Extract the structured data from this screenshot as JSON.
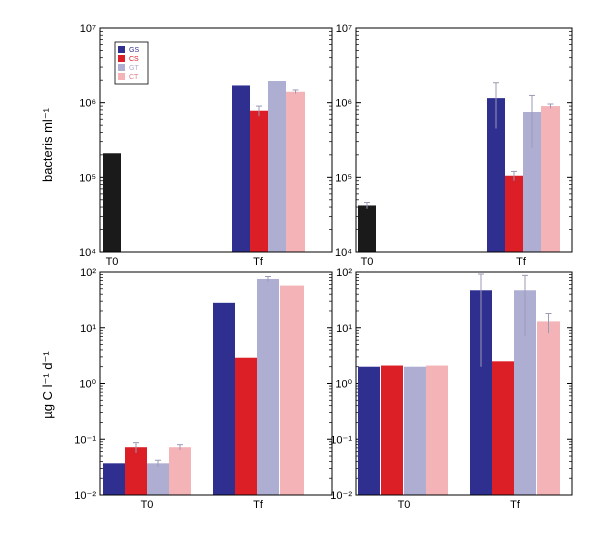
{
  "figure": {
    "ylabel_top": "bacteris ml⁻¹",
    "ylabel_bottom": "µg C l⁻¹ d⁻¹"
  },
  "legend": [
    {
      "name": "GS",
      "color": "#2e2f8e",
      "text_color": "#2e2f8e"
    },
    {
      "name": "CS",
      "color": "#dc1f26",
      "text_color": "#dc1f26"
    },
    {
      "name": "GT",
      "color": "#aeaed3",
      "text_color": "#aeaed3"
    },
    {
      "name": "CT",
      "color": "#f4b3b6",
      "text_color": "#e0808a"
    }
  ],
  "colors": {
    "t0_bar": "#1a1a1a",
    "error_bar": "#9a9ab5"
  },
  "chart_data": [
    {
      "type": "bar",
      "panel": "top-left",
      "categories": [
        "T0",
        "Tf"
      ],
      "series": [
        {
          "name": "T0",
          "values": [
            210000,
            null
          ],
          "errors": [
            0,
            null
          ]
        },
        {
          "name": "GS",
          "values": [
            null,
            1700000
          ],
          "errors": [
            null,
            0
          ]
        },
        {
          "name": "CS",
          "values": [
            null,
            780000
          ],
          "errors": [
            null,
            120000
          ]
        },
        {
          "name": "GT",
          "values": [
            null,
            1950000
          ],
          "errors": [
            null,
            0
          ]
        },
        {
          "name": "CT",
          "values": [
            null,
            1400000
          ],
          "errors": [
            null,
            80000
          ]
        }
      ],
      "ylabel": "bacteris ml⁻¹",
      "ylim": [
        10000,
        10000000
      ],
      "yscale": "log",
      "legend": "top-left"
    },
    {
      "type": "bar",
      "panel": "top-right",
      "categories": [
        "T0",
        "Tf"
      ],
      "series": [
        {
          "name": "T0",
          "values": [
            42000,
            null
          ],
          "errors": [
            4000,
            null
          ]
        },
        {
          "name": "GS",
          "values": [
            null,
            1150000
          ],
          "errors": [
            null,
            700000
          ]
        },
        {
          "name": "CS",
          "values": [
            null,
            105000
          ],
          "errors": [
            null,
            15000
          ]
        },
        {
          "name": "GT",
          "values": [
            null,
            750000
          ],
          "errors": [
            null,
            500000
          ]
        },
        {
          "name": "CT",
          "values": [
            null,
            900000
          ],
          "errors": [
            null,
            60000
          ]
        }
      ],
      "ylim": [
        10000,
        10000000
      ],
      "yscale": "log"
    },
    {
      "type": "bar",
      "panel": "bottom-left",
      "categories": [
        "T0",
        "Tf"
      ],
      "series": [
        {
          "name": "GS",
          "values": [
            0.037,
            28
          ],
          "errors": [
            0,
            0
          ]
        },
        {
          "name": "CS",
          "values": [
            0.072,
            2.9
          ],
          "errors": [
            0.015,
            0
          ]
        },
        {
          "name": "GT",
          "values": [
            0.037,
            75
          ],
          "errors": [
            0.005,
            8
          ]
        },
        {
          "name": "CT",
          "values": [
            0.072,
            57
          ],
          "errors": [
            0.008,
            0
          ]
        }
      ],
      "ylabel": "µg C l⁻¹ d⁻¹",
      "ylim": [
        0.01,
        100
      ],
      "yscale": "log"
    },
    {
      "type": "bar",
      "panel": "bottom-right",
      "categories": [
        "T0",
        "Tf"
      ],
      "series": [
        {
          "name": "GS",
          "values": [
            2.0,
            47
          ],
          "errors": [
            0,
            45
          ]
        },
        {
          "name": "CS",
          "values": [
            2.1,
            2.5
          ],
          "errors": [
            0,
            0
          ]
        },
        {
          "name": "GT",
          "values": [
            2.0,
            47
          ],
          "errors": [
            0,
            40
          ]
        },
        {
          "name": "CT",
          "values": [
            2.1,
            13
          ],
          "errors": [
            0,
            5
          ]
        }
      ],
      "ylim": [
        0.01,
        100
      ],
      "yscale": "log"
    }
  ]
}
